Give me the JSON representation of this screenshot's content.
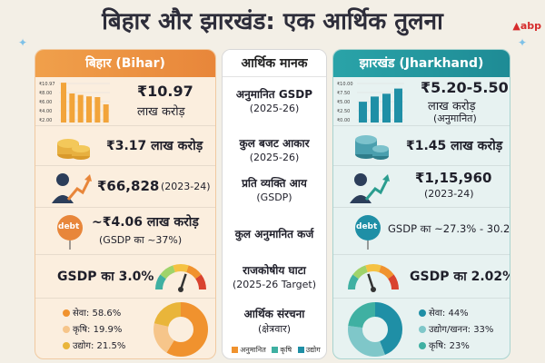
{
  "title": "बिहार और झारखंड: एक आर्थिक तुलना",
  "brand": "abp",
  "bihar": {
    "header": "बिहार (Bihar)",
    "gsdp_value": "₹10.97",
    "gsdp_unit": "लाख करोड़",
    "budget": "₹3.17 लाख करोड़",
    "per_capita": "₹66,828",
    "per_capita_year": "(2023-24)",
    "debt": "~₹4.06 लाख करोड़",
    "debt_sub": "(GSDP का ~37%)",
    "deficit": "GSDP का 3.0%",
    "debt_badge": "debt",
    "structure": [
      {
        "label": "सेवा: 58.6%",
        "value": 58.6,
        "color": "#f0922e"
      },
      {
        "label": "कृषि: 19.9%",
        "value": 19.9,
        "color": "#f6c58a"
      },
      {
        "label": "उद्योग: 21.5%",
        "value": 21.5,
        "color": "#e9b53a"
      }
    ],
    "gauge_level": 0.6,
    "bar_axis": [
      "₹10.97",
      "₹8.00",
      "₹6.00",
      "₹4.00",
      "₹2.00"
    ]
  },
  "metrics": {
    "header": "आर्थिक मानक",
    "items": [
      {
        "label": "अनुमानित GSDP",
        "sub": "(2025-26)"
      },
      {
        "label": "कुल बजट आकार",
        "sub": "(2025-26)"
      },
      {
        "label": "प्रति व्यक्ति आय",
        "sub": "(GSDP)"
      },
      {
        "label": "कुल अनुमानित कर्ज",
        "sub": ""
      },
      {
        "label": "राजकोषीय घाटा",
        "sub": "(2025-26 Target)"
      },
      {
        "label": "आर्थिक संरचना",
        "sub": "(क्षेत्रवार)"
      }
    ],
    "legend": [
      "अनुमानित",
      "कृषि",
      "उद्योग"
    ]
  },
  "jharkhand": {
    "header": "झारखंड (Jharkhand)",
    "gsdp_value": "₹5.20-5.50",
    "gsdp_unit": "लाख करोड़",
    "gsdp_note": "(अनुमानित)",
    "budget": "₹1.45 लाख करोड़",
    "per_capita": "₹1,15,960",
    "per_capita_year": "(2023-24)",
    "debt": "GSDP का ~27.3% - 30.2%",
    "deficit": "GSDP का 2.02%",
    "debt_badge": "debt",
    "structure": [
      {
        "label": "सेवा: 44%",
        "value": 44,
        "color": "#1f8fa6"
      },
      {
        "label": "उद्योग/खनन: 33%",
        "value": 33,
        "color": "#7fc7c9"
      },
      {
        "label": "कृषि: 23%",
        "value": 23,
        "color": "#3fb0a2"
      }
    ],
    "gauge_level": 0.4,
    "bar_axis": [
      "₹10.00",
      "₹7.50",
      "₹5.00",
      "₹2.50",
      "₹0.00"
    ]
  },
  "chart_data": [
    {
      "type": "bar",
      "categories": [
        "1",
        "2",
        "3",
        "4",
        "5",
        "6"
      ],
      "values": [
        10.97,
        8.0,
        7.6,
        7.2,
        7.0,
        5.0
      ],
      "ylim": [
        0,
        11
      ]
    },
    {
      "type": "bar",
      "categories": [
        "1",
        "2",
        "3",
        "4"
      ],
      "values": [
        5.2,
        6.5,
        7.2,
        8.5
      ],
      "ylim": [
        0,
        10
      ]
    }
  ]
}
